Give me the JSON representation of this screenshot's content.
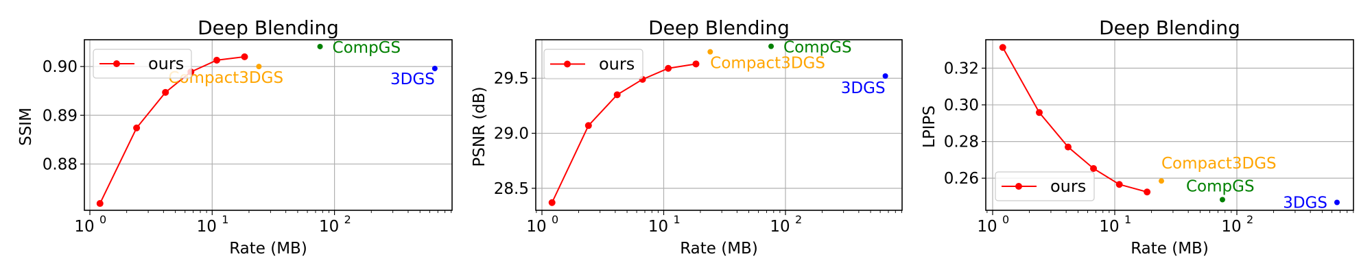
{
  "figure": {
    "panels": [
      {
        "title": "Deep Blending",
        "xlabel": "Rate (MB)",
        "ylabel": "SSIM",
        "legend_label": "ours"
      },
      {
        "title": "Deep Blending",
        "xlabel": "Rate (MB)",
        "ylabel": "PSNR (dB)",
        "legend_label": "ours"
      },
      {
        "title": "Deep Blending",
        "xlabel": "Rate (MB)",
        "ylabel": "LPIPS",
        "legend_label": "ours"
      }
    ]
  },
  "colors": {
    "ours": "#ff0000",
    "Compact3DGS": "#ffa500",
    "CompGS": "#008000",
    "3DGS": "#0000ff"
  },
  "chart_data": [
    {
      "type": "line",
      "title": "Deep Blending",
      "xlabel": "Rate (MB)",
      "ylabel": "SSIM",
      "xscale": "log",
      "xlim": [
        0.9,
        850
      ],
      "ylim": [
        0.8705,
        0.9055
      ],
      "xticks": [
        1,
        10,
        100
      ],
      "xtick_labels": [
        "10^0",
        "10^1",
        "10^2"
      ],
      "yticks": [
        0.88,
        0.89,
        0.9
      ],
      "ytick_labels": [
        "0.88",
        "0.89",
        "0.90"
      ],
      "grid": true,
      "legend_position": "upper left",
      "series": [
        {
          "name": "ours",
          "x": [
            1.21,
            2.41,
            4.15,
            6.7,
            10.9,
            18.4
          ],
          "y": [
            0.8719,
            0.8874,
            0.8947,
            0.8989,
            0.9013,
            0.902
          ]
        }
      ],
      "annotations": [
        {
          "name": "Compact3DGS",
          "x": 24.1,
          "y": 0.9
        },
        {
          "name": "CompGS",
          "x": 76.2,
          "y": 0.9041
        },
        {
          "name": "3DGS",
          "x": 661,
          "y": 0.8996
        }
      ]
    },
    {
      "type": "line",
      "title": "Deep Blending",
      "xlabel": "Rate (MB)",
      "ylabel": "PSNR (dB)",
      "xscale": "log",
      "xlim": [
        0.9,
        850
      ],
      "ylim": [
        28.3,
        29.85
      ],
      "xticks": [
        1,
        10,
        100
      ],
      "xtick_labels": [
        "10^0",
        "10^1",
        "10^2"
      ],
      "yticks": [
        28.5,
        29.0,
        29.5
      ],
      "ytick_labels": [
        "28.5",
        "29.0",
        "29.5"
      ],
      "grid": true,
      "legend_position": "upper left",
      "series": [
        {
          "name": "ours",
          "x": [
            1.21,
            2.41,
            4.15,
            6.7,
            10.9,
            18.4
          ],
          "y": [
            28.37,
            29.07,
            29.35,
            29.49,
            29.59,
            29.63
          ]
        }
      ],
      "annotations": [
        {
          "name": "Compact3DGS",
          "x": 24.1,
          "y": 29.74
        },
        {
          "name": "CompGS",
          "x": 76.2,
          "y": 29.79
        },
        {
          "name": "3DGS",
          "x": 661,
          "y": 29.52
        }
      ]
    },
    {
      "type": "line",
      "title": "Deep Blending",
      "xlabel": "Rate (MB)",
      "ylabel": "LPIPS",
      "xscale": "log",
      "xlim": [
        0.9,
        850
      ],
      "ylim": [
        0.2425,
        0.3355
      ],
      "xticks": [
        1,
        10,
        100
      ],
      "xtick_labels": [
        "10^0",
        "10^1",
        "10^2"
      ],
      "yticks": [
        0.26,
        0.28,
        0.3,
        0.32
      ],
      "ytick_labels": [
        "0.26",
        "0.28",
        "0.30",
        "0.32"
      ],
      "grid": true,
      "legend_position": "lower left",
      "series": [
        {
          "name": "ours",
          "x": [
            1.21,
            2.41,
            4.15,
            6.7,
            10.9,
            18.4
          ],
          "y": [
            0.3313,
            0.2958,
            0.277,
            0.2653,
            0.2566,
            0.2525
          ]
        }
      ],
      "annotations": [
        {
          "name": "Compact3DGS",
          "x": 24.1,
          "y": 0.2585
        },
        {
          "name": "CompGS",
          "x": 76.2,
          "y": 0.2483
        },
        {
          "name": "3DGS",
          "x": 661,
          "y": 0.2468
        }
      ]
    }
  ]
}
